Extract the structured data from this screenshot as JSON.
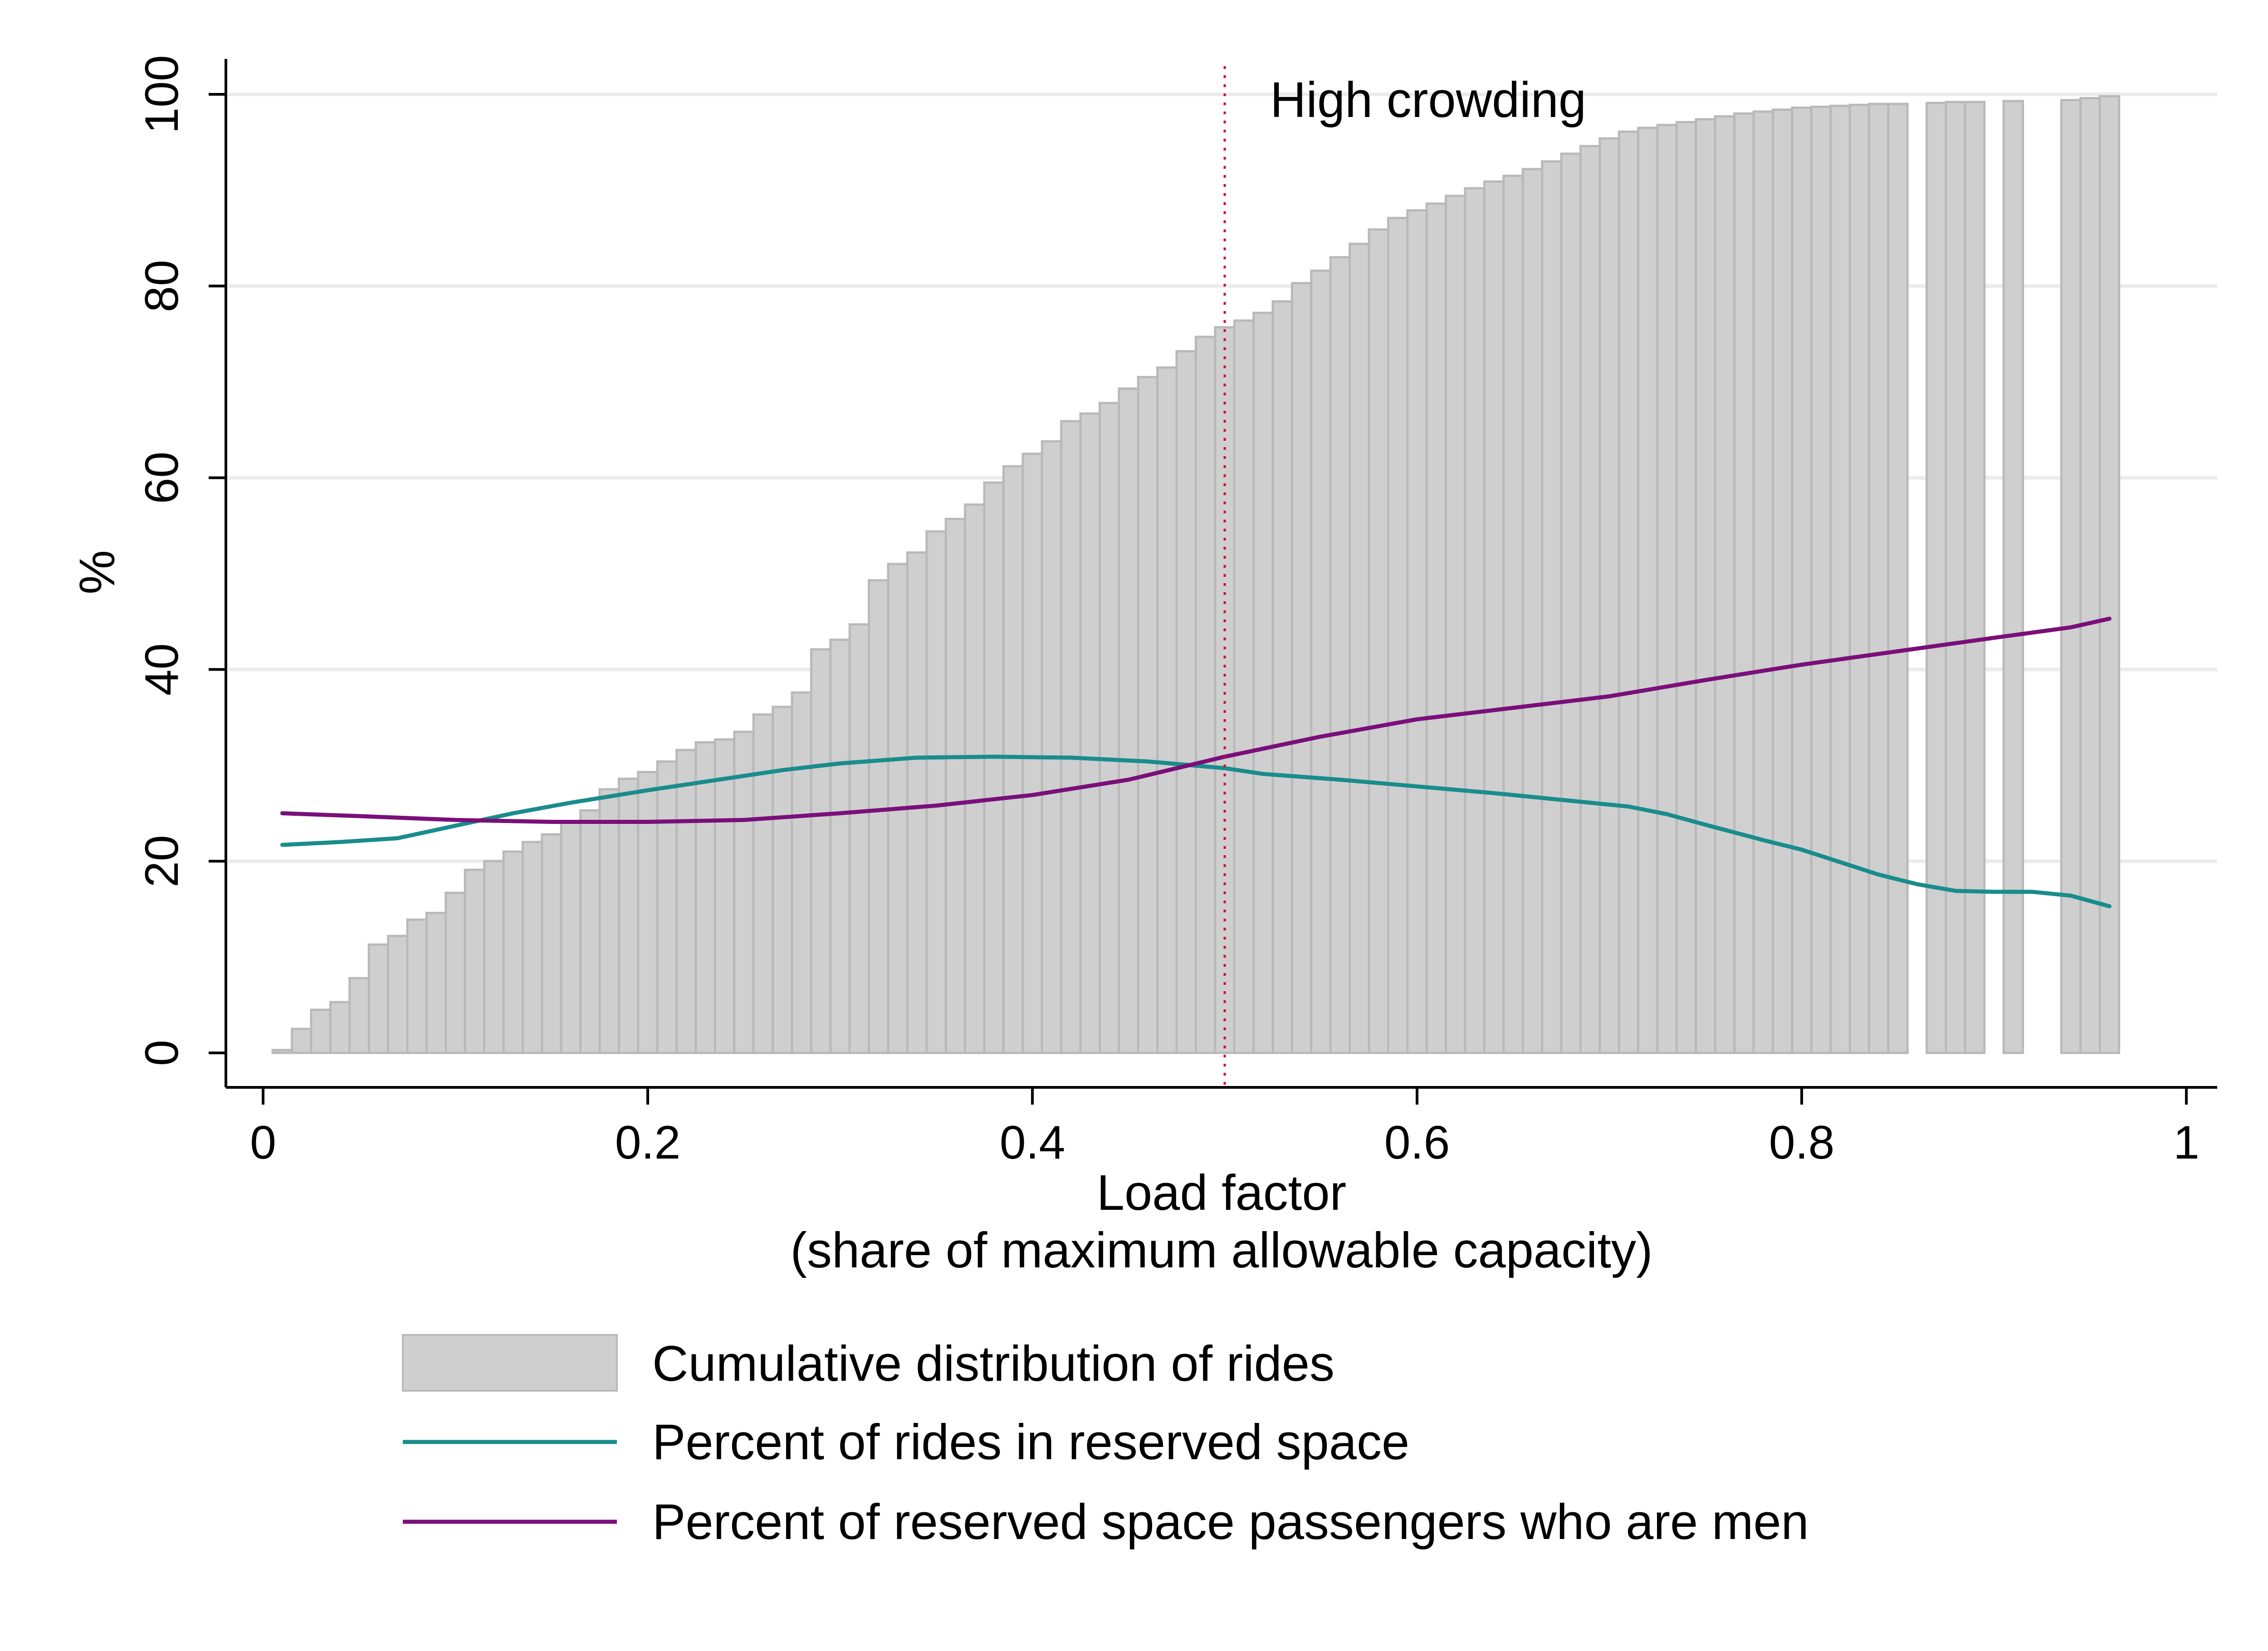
{
  "chart_data": {
    "type": "bar",
    "title": "",
    "xlabel": "Load factor",
    "xlabel_sub": "(share of maximum allowable capacity)",
    "ylabel": "%",
    "xlim": [
      0,
      1
    ],
    "ylim": [
      0,
      100
    ],
    "x_ticks": [
      "0",
      "0.2",
      "0.4",
      "0.6",
      "0.8",
      "1"
    ],
    "y_ticks": [
      "0",
      "20",
      "40",
      "60",
      "80",
      "100"
    ],
    "grid": "horizontal",
    "legend_position": "bottom",
    "annotation": {
      "text": "High crowding",
      "x": 0.5
    },
    "colors": {
      "bars": "#cfcfcf",
      "bar_edge": "#b9b9b9",
      "teal": "#1a8c8c",
      "purple": "#7a0f7a",
      "annotation_line": "#d0003a",
      "grid": "#ebebeb"
    },
    "bars": {
      "name": "Cumulative distribution of rides",
      "x": [
        0.01,
        0.02,
        0.03,
        0.04,
        0.05,
        0.06,
        0.07,
        0.08,
        0.09,
        0.1,
        0.11,
        0.12,
        0.13,
        0.14,
        0.15,
        0.16,
        0.17,
        0.18,
        0.19,
        0.2,
        0.21,
        0.22,
        0.23,
        0.24,
        0.25,
        0.26,
        0.27,
        0.28,
        0.29,
        0.3,
        0.31,
        0.32,
        0.33,
        0.34,
        0.35,
        0.36,
        0.37,
        0.38,
        0.39,
        0.4,
        0.41,
        0.42,
        0.43,
        0.44,
        0.45,
        0.46,
        0.47,
        0.48,
        0.49,
        0.5,
        0.51,
        0.52,
        0.53,
        0.54,
        0.55,
        0.56,
        0.57,
        0.58,
        0.59,
        0.6,
        0.61,
        0.62,
        0.63,
        0.64,
        0.65,
        0.66,
        0.67,
        0.68,
        0.69,
        0.7,
        0.71,
        0.72,
        0.73,
        0.74,
        0.75,
        0.76,
        0.77,
        0.78,
        0.79,
        0.8,
        0.81,
        0.82,
        0.83,
        0.84,
        0.85,
        0.87,
        0.88,
        0.89,
        0.91,
        0.94,
        0.95,
        0.96
      ],
      "values": [
        0.3,
        2.5,
        4.5,
        5.3,
        7.8,
        11.3,
        12.2,
        13.9,
        14.6,
        16.7,
        19.1,
        20.0,
        21.0,
        22.0,
        22.8,
        24.0,
        25.3,
        27.5,
        28.6,
        29.3,
        30.4,
        31.6,
        32.4,
        32.7,
        33.5,
        35.3,
        36.1,
        37.6,
        42.1,
        43.1,
        44.7,
        49.3,
        51.0,
        52.2,
        54.4,
        55.7,
        57.2,
        59.5,
        61.2,
        62.5,
        63.8,
        65.9,
        66.7,
        67.8,
        69.3,
        70.5,
        71.5,
        73.2,
        74.7,
        75.7,
        76.4,
        77.2,
        78.4,
        80.3,
        81.6,
        83.0,
        84.4,
        85.9,
        87.1,
        87.9,
        88.6,
        89.4,
        90.2,
        90.9,
        91.5,
        92.2,
        93.0,
        93.8,
        94.6,
        95.4,
        96.1,
        96.5,
        96.8,
        97.1,
        97.4,
        97.7,
        98.0,
        98.2,
        98.4,
        98.6,
        98.7,
        98.8,
        98.9,
        99.0,
        99.0,
        99.1,
        99.2,
        99.2,
        99.3,
        99.4,
        99.6,
        99.8
      ]
    },
    "series": [
      {
        "name": "Percent of rides in reserved space",
        "x": [
          0.01,
          0.04,
          0.07,
          0.1,
          0.13,
          0.16,
          0.2,
          0.24,
          0.27,
          0.3,
          0.34,
          0.38,
          0.42,
          0.46,
          0.5,
          0.52,
          0.56,
          0.6,
          0.64,
          0.68,
          0.71,
          0.73,
          0.75,
          0.78,
          0.8,
          0.82,
          0.84,
          0.86,
          0.88,
          0.9,
          0.92,
          0.94,
          0.96
        ],
        "values": [
          21.7,
          22.0,
          22.4,
          23.7,
          25.0,
          26.1,
          27.4,
          28.6,
          29.5,
          30.2,
          30.8,
          30.9,
          30.8,
          30.4,
          29.7,
          29.1,
          28.5,
          27.8,
          27.1,
          26.3,
          25.7,
          24.9,
          23.8,
          22.2,
          21.2,
          19.9,
          18.6,
          17.6,
          16.9,
          16.8,
          16.8,
          16.4,
          15.3
        ]
      },
      {
        "name": "Percent of reserved space passengers who are men",
        "x": [
          0.01,
          0.05,
          0.1,
          0.15,
          0.2,
          0.25,
          0.3,
          0.35,
          0.4,
          0.45,
          0.5,
          0.55,
          0.6,
          0.65,
          0.7,
          0.75,
          0.8,
          0.85,
          0.9,
          0.94,
          0.96
        ],
        "values": [
          25.0,
          24.7,
          24.3,
          24.1,
          24.1,
          24.3,
          25.0,
          25.8,
          26.9,
          28.5,
          30.9,
          33.0,
          34.8,
          36.0,
          37.2,
          38.9,
          40.5,
          41.9,
          43.3,
          44.4,
          45.3
        ]
      }
    ]
  }
}
